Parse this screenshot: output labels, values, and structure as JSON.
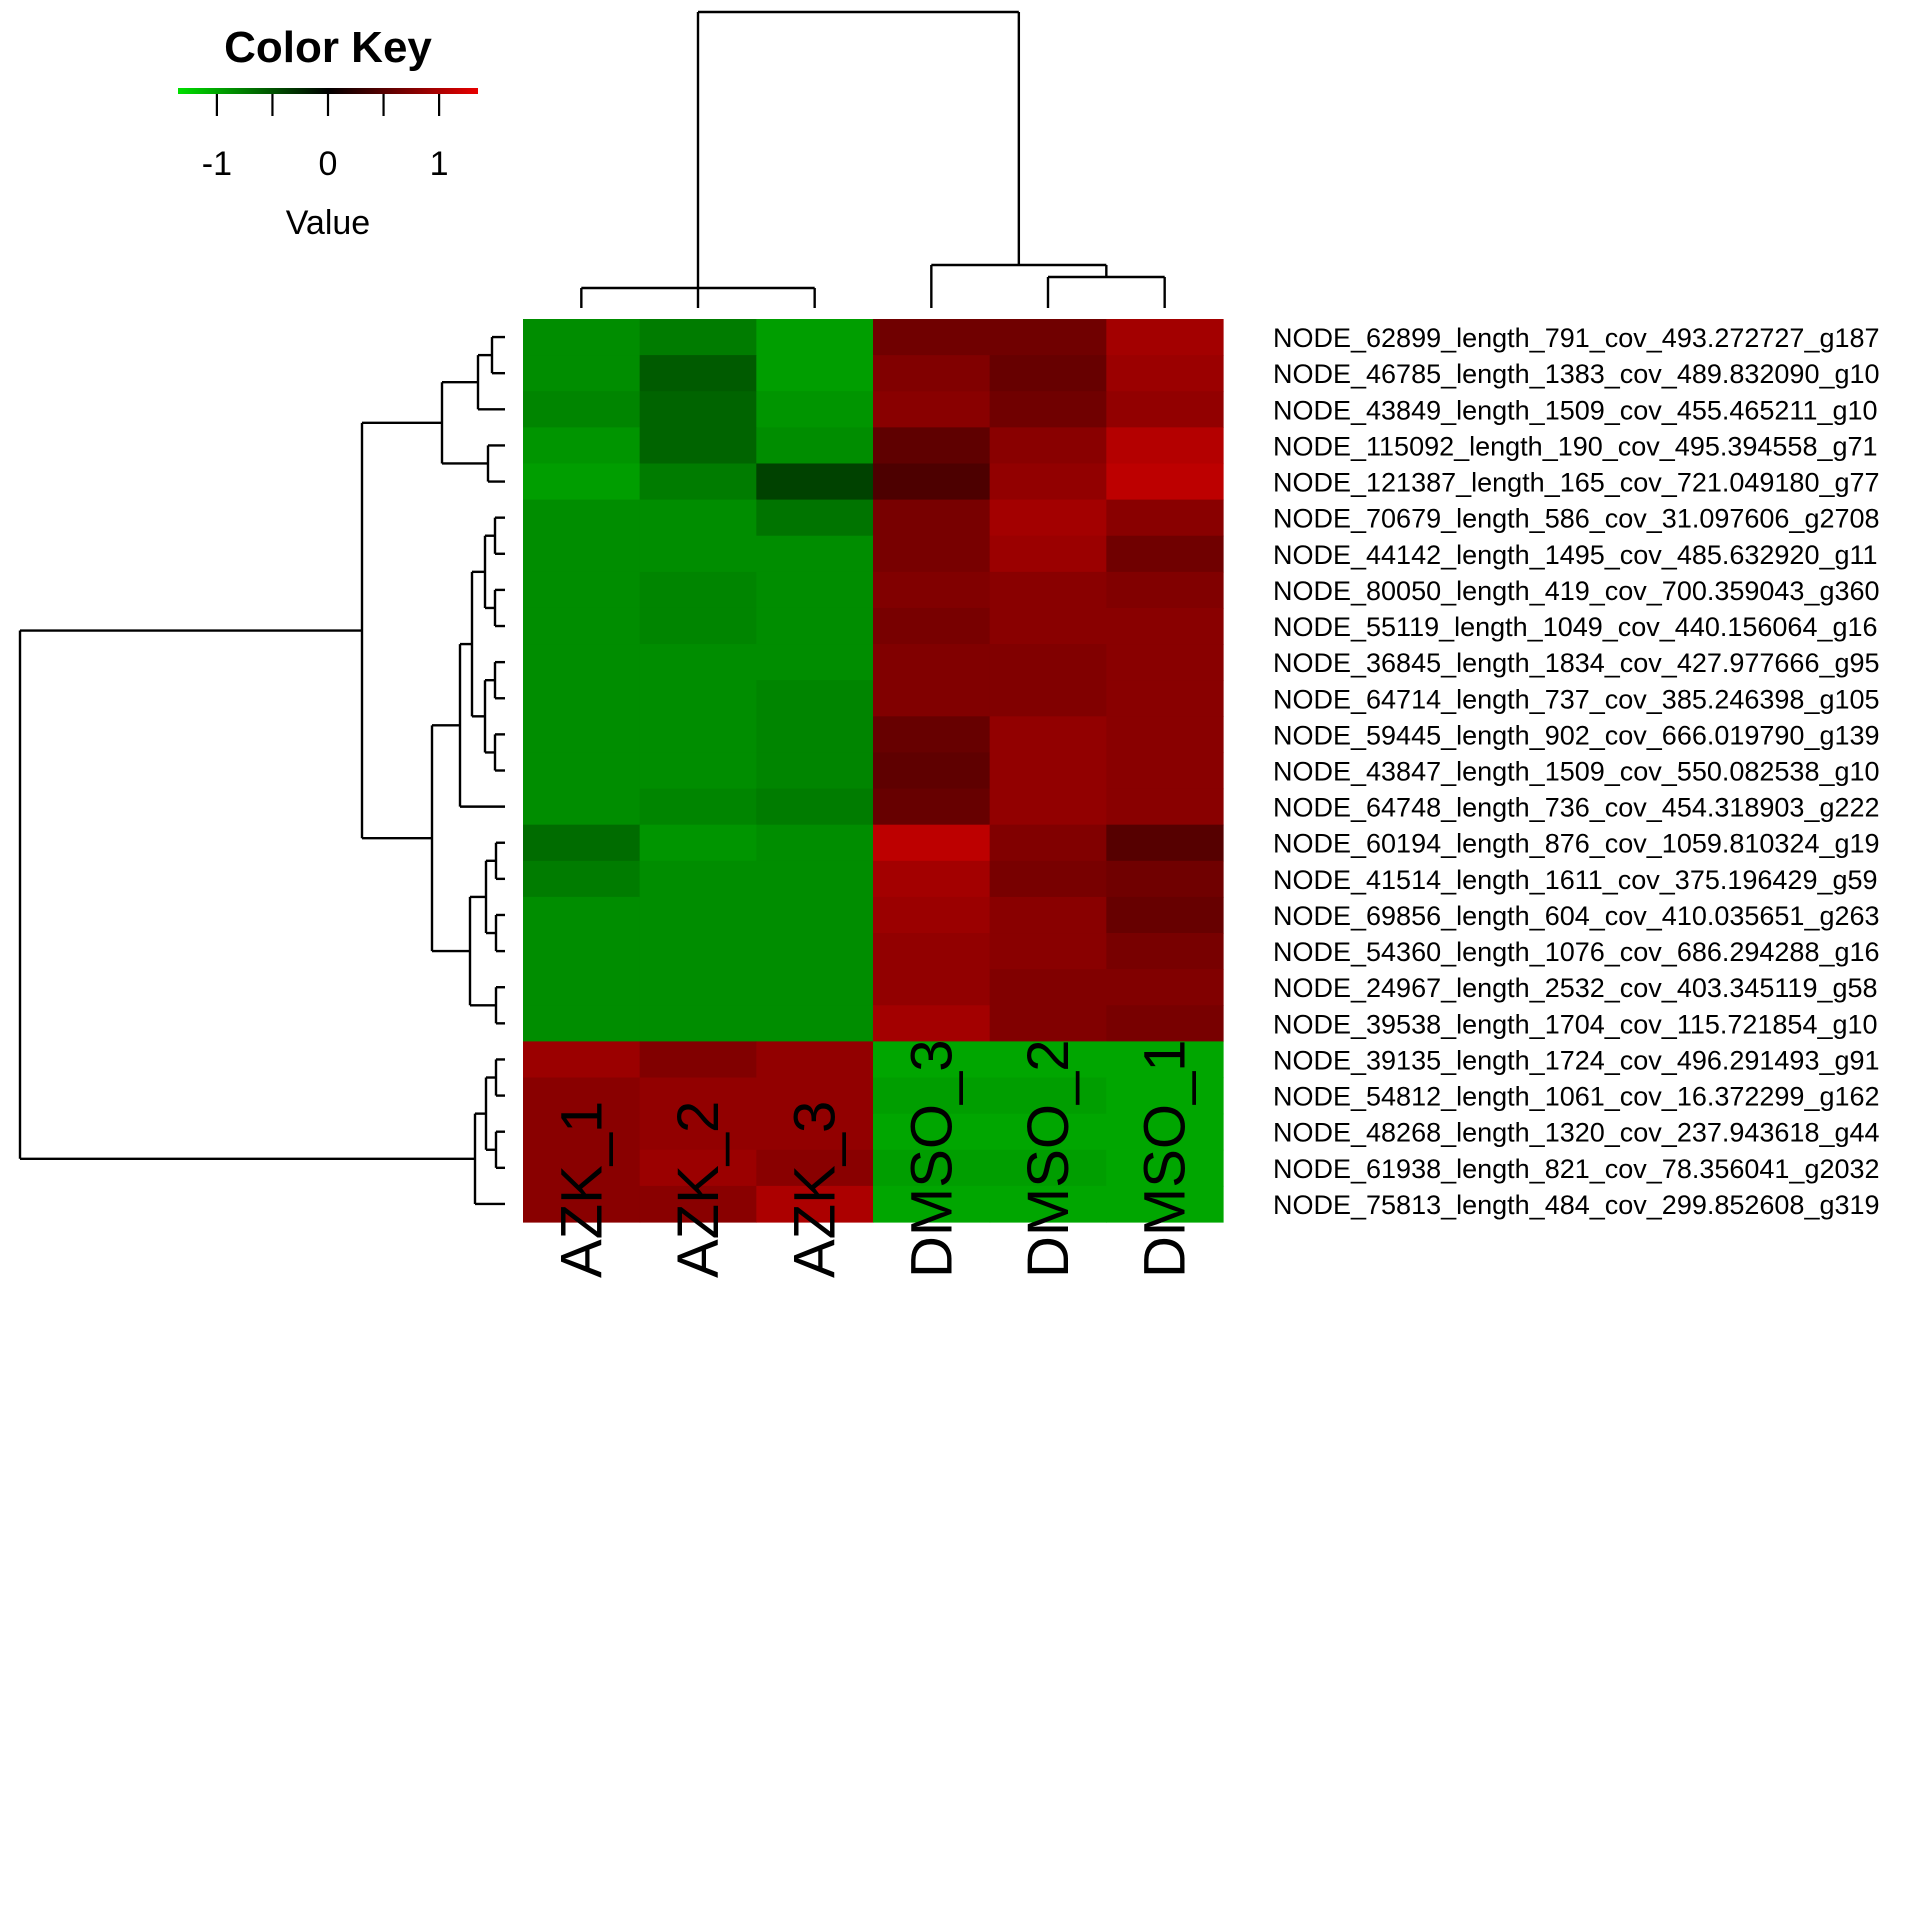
{
  "chart_data": {
    "type": "heatmap",
    "color_key": {
      "title": "Color Key",
      "xlabel": "Value",
      "ticks": [
        -1,
        0,
        1
      ],
      "tick_labels": [
        "-1",
        "0",
        "1"
      ],
      "range": [
        -1.35,
        1.35
      ],
      "low_color": "#00e000",
      "mid_color": "#000000",
      "high_color": "#e80000"
    },
    "columns": [
      "AZK_1",
      "AZK_2",
      "AZK_3",
      "DMSO_3",
      "DMSO_2",
      "DMSO_1"
    ],
    "row_labels": [
      "NODE_62899_length_791_cov_493.272727_g187",
      "NODE_46785_length_1383_cov_489.832090_g10",
      "NODE_43849_length_1509_cov_455.465211_g10",
      "NODE_115092_length_190_cov_495.394558_g71",
      "NODE_121387_length_165_cov_721.049180_g77",
      "NODE_70679_length_586_cov_31.097606_g2708",
      "NODE_44142_length_1495_cov_485.632920_g11",
      "NODE_80050_length_419_cov_700.359043_g360",
      "NODE_55119_length_1049_cov_440.156064_g16",
      "NODE_36845_length_1834_cov_427.977666_g95",
      "NODE_64714_length_737_cov_385.246398_g105",
      "NODE_59445_length_902_cov_666.019790_g139",
      "NODE_43847_length_1509_cov_550.082538_g10",
      "NODE_64748_length_736_cov_454.318903_g222",
      "NODE_60194_length_876_cov_1059.810324_g19",
      "NODE_41514_length_1611_cov_375.196429_g59",
      "NODE_69856_length_604_cov_410.035651_g263",
      "NODE_54360_length_1076_cov_686.294288_g16",
      "NODE_24967_length_2532_cov_403.345119_g58",
      "NODE_39538_length_1704_cov_115.721854_g10",
      "NODE_39135_length_1724_cov_496.291493_g91",
      "NODE_54812_length_1061_cov_16.372299_g162",
      "NODE_48268_length_1320_cov_237.943618_g44",
      "NODE_61938_length_821_cov_78.356041_g2032",
      "NODE_75813_length_484_cov_299.852608_g319"
    ],
    "values": [
      [
        -0.85,
        -0.75,
        -0.95,
        0.65,
        0.65,
        0.95
      ],
      [
        -0.85,
        -0.55,
        -0.95,
        0.75,
        0.6,
        0.9
      ],
      [
        -0.8,
        -0.6,
        -0.9,
        0.8,
        0.65,
        0.85
      ],
      [
        -0.9,
        -0.6,
        -0.85,
        0.55,
        0.8,
        1.05
      ],
      [
        -0.95,
        -0.75,
        -0.4,
        0.45,
        0.85,
        1.1
      ],
      [
        -0.85,
        -0.85,
        -0.7,
        0.7,
        0.95,
        0.8
      ],
      [
        -0.85,
        -0.85,
        -0.85,
        0.7,
        0.9,
        0.65
      ],
      [
        -0.85,
        -0.8,
        -0.85,
        0.75,
        0.8,
        0.75
      ],
      [
        -0.85,
        -0.8,
        -0.85,
        0.7,
        0.8,
        0.8
      ],
      [
        -0.85,
        -0.85,
        -0.85,
        0.75,
        0.75,
        0.8
      ],
      [
        -0.85,
        -0.85,
        -0.8,
        0.75,
        0.75,
        0.8
      ],
      [
        -0.85,
        -0.85,
        -0.8,
        0.6,
        0.85,
        0.8
      ],
      [
        -0.85,
        -0.85,
        -0.8,
        0.55,
        0.85,
        0.8
      ],
      [
        -0.85,
        -0.8,
        -0.75,
        0.6,
        0.85,
        0.8
      ],
      [
        -0.65,
        -0.9,
        -0.85,
        1.1,
        0.75,
        0.5
      ],
      [
        -0.75,
        -0.85,
        -0.85,
        0.95,
        0.7,
        0.65
      ],
      [
        -0.85,
        -0.85,
        -0.85,
        0.9,
        0.8,
        0.6
      ],
      [
        -0.85,
        -0.85,
        -0.85,
        0.85,
        0.8,
        0.7
      ],
      [
        -0.85,
        -0.85,
        -0.85,
        0.85,
        0.75,
        0.75
      ],
      [
        -0.85,
        -0.85,
        -0.85,
        0.95,
        0.75,
        0.7
      ],
      [
        0.9,
        0.75,
        0.85,
        -1.0,
        -1.0,
        -1.0
      ],
      [
        0.8,
        0.85,
        0.85,
        -0.95,
        -0.95,
        -1.0
      ],
      [
        0.8,
        0.85,
        0.85,
        -1.0,
        -1.0,
        -1.0
      ],
      [
        0.8,
        0.9,
        0.8,
        -0.95,
        -0.95,
        -1.0
      ],
      [
        0.8,
        0.8,
        1.0,
        -1.0,
        -1.0,
        -1.0
      ]
    ],
    "column_dendrogram": "((AZK_1,AZK_2,AZK_3),(DMSO_3,(DMSO_2,DMSO_1)))"
  }
}
